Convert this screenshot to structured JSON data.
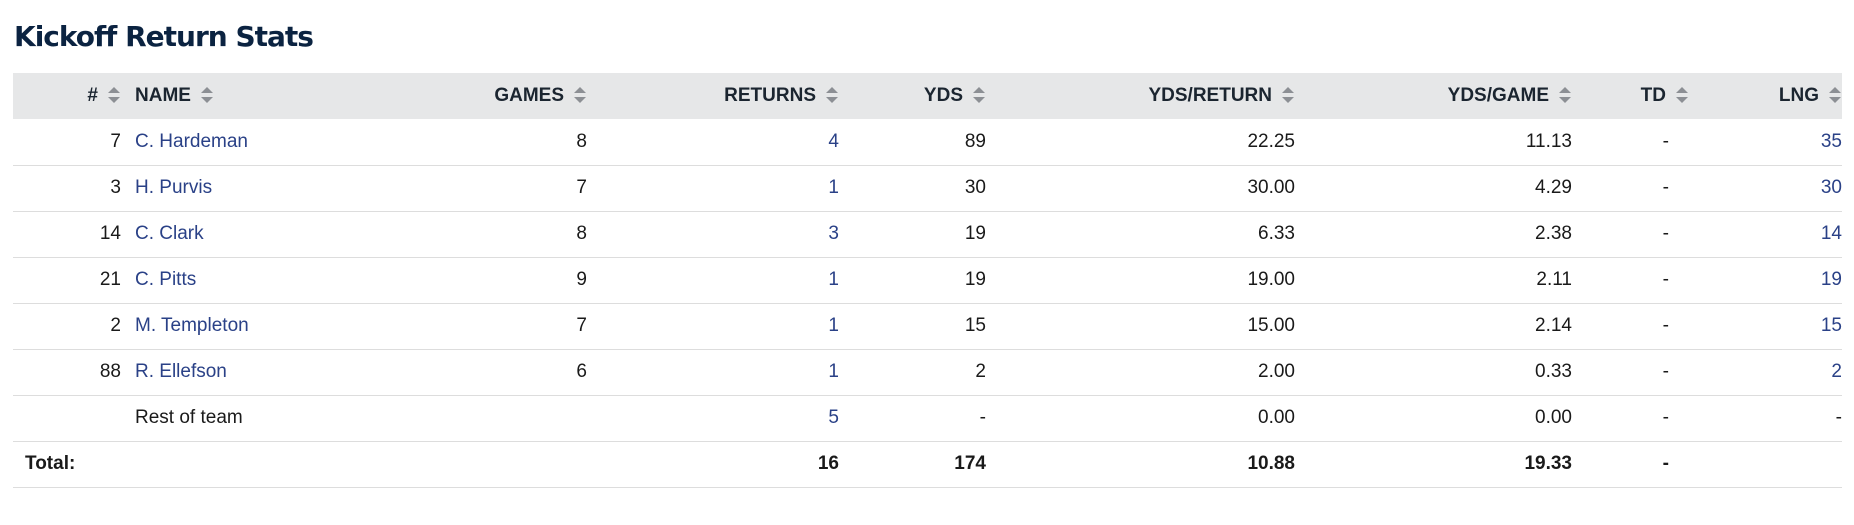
{
  "page": {
    "title": "Kickoff Return Stats"
  },
  "headers": {
    "number": "#",
    "name": "NAME",
    "games": "GAMES",
    "returns": "RETURNS",
    "yds": "YDS",
    "yds_per_return": "YDS/RETURN",
    "yds_per_game": "YDS/GAME",
    "td": "TD",
    "lng": "LNG"
  },
  "rows": [
    {
      "number": "7",
      "name": "C. Hardeman",
      "games": "8",
      "returns": "4",
      "yds": "89",
      "yds_per_return": "22.25",
      "yds_per_game": "11.13",
      "td": "-",
      "lng": "35"
    },
    {
      "number": "3",
      "name": "H. Purvis",
      "games": "7",
      "returns": "1",
      "yds": "30",
      "yds_per_return": "30.00",
      "yds_per_game": "4.29",
      "td": "-",
      "lng": "30"
    },
    {
      "number": "14",
      "name": "C. Clark",
      "games": "8",
      "returns": "3",
      "yds": "19",
      "yds_per_return": "6.33",
      "yds_per_game": "2.38",
      "td": "-",
      "lng": "14"
    },
    {
      "number": "21",
      "name": "C. Pitts",
      "games": "9",
      "returns": "1",
      "yds": "19",
      "yds_per_return": "19.00",
      "yds_per_game": "2.11",
      "td": "-",
      "lng": "19"
    },
    {
      "number": "2",
      "name": "M. Templeton",
      "games": "7",
      "returns": "1",
      "yds": "15",
      "yds_per_return": "15.00",
      "yds_per_game": "2.14",
      "td": "-",
      "lng": "15"
    },
    {
      "number": "88",
      "name": "R. Ellefson",
      "games": "6",
      "returns": "1",
      "yds": "2",
      "yds_per_return": "2.00",
      "yds_per_game": "0.33",
      "td": "-",
      "lng": "2"
    }
  ],
  "rest_of_team": {
    "name": "Rest of team",
    "returns": "5",
    "yds": "-",
    "yds_per_return": "0.00",
    "yds_per_game": "0.00",
    "td": "-",
    "lng": "-"
  },
  "totals": {
    "label": "Total:",
    "returns": "16",
    "yds": "174",
    "yds_per_return": "10.88",
    "yds_per_game": "19.33",
    "td": "-"
  },
  "colors": {
    "link": "#2a4187",
    "title": "#0b2341",
    "header_bg": "#e6e7e8",
    "sort_icon": "#8c8f94"
  },
  "icons": {
    "sort": "sort-arrows-icon"
  }
}
